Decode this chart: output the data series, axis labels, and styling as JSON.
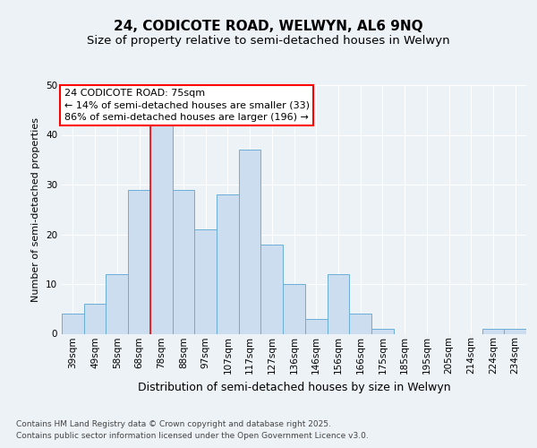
{
  "title1": "24, CODICOTE ROAD, WELWYN, AL6 9NQ",
  "title2": "Size of property relative to semi-detached houses in Welwyn",
  "xlabel": "Distribution of semi-detached houses by size in Welwyn",
  "ylabel": "Number of semi-detached properties",
  "categories": [
    "39sqm",
    "49sqm",
    "58sqm",
    "68sqm",
    "78sqm",
    "88sqm",
    "97sqm",
    "107sqm",
    "117sqm",
    "127sqm",
    "136sqm",
    "146sqm",
    "156sqm",
    "166sqm",
    "175sqm",
    "185sqm",
    "195sqm",
    "205sqm",
    "214sqm",
    "224sqm",
    "234sqm"
  ],
  "values": [
    4,
    6,
    12,
    29,
    42,
    29,
    21,
    28,
    37,
    18,
    10,
    3,
    12,
    4,
    1,
    0,
    0,
    0,
    0,
    1,
    1
  ],
  "bar_color": "#ccddef",
  "bar_edge_color": "#6aaed6",
  "red_line_index": 4,
  "annotation_line1": "24 CODICOTE ROAD: 75sqm",
  "annotation_line2": "← 14% of semi-detached houses are smaller (33)",
  "annotation_line3": "86% of semi-detached houses are larger (196) →",
  "annotation_box_color": "white",
  "annotation_box_edge_color": "red",
  "footnote": "Contains HM Land Registry data © Crown copyright and database right 2025.\nContains public sector information licensed under the Open Government Licence v3.0.",
  "ylim": [
    0,
    50
  ],
  "background_color": "#edf2f7",
  "grid_color": "#ffffff",
  "title1_fontsize": 11,
  "title2_fontsize": 9.5,
  "tick_fontsize": 7.5,
  "ylabel_fontsize": 8,
  "xlabel_fontsize": 9,
  "annotation_fontsize": 8,
  "footnote_fontsize": 6.5
}
